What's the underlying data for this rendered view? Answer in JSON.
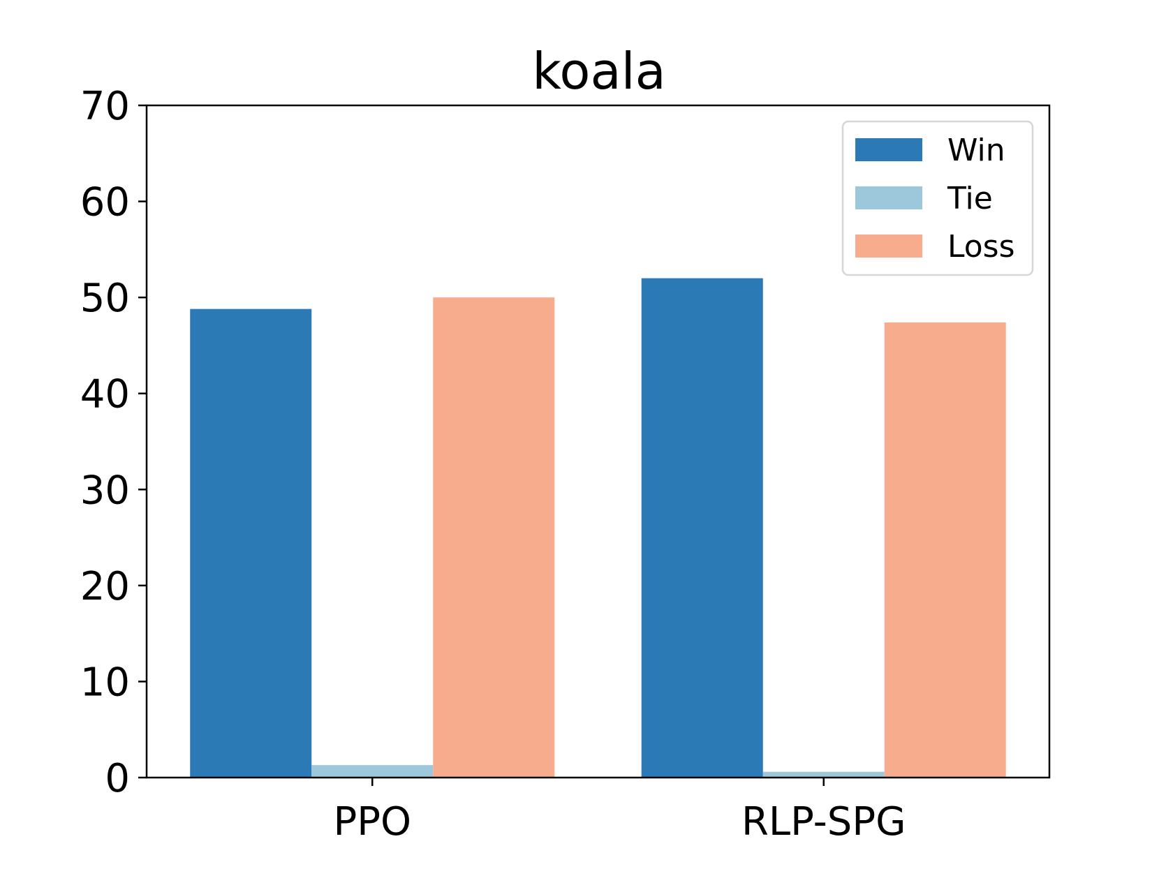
{
  "chart_data": {
    "type": "bar",
    "title": "koala",
    "xlabel": "",
    "ylabel": "",
    "categories": [
      "PPO",
      "RLP-SPG"
    ],
    "series": [
      {
        "name": "Win",
        "color": "#2b79b5",
        "values": [
          48.8,
          52.0
        ]
      },
      {
        "name": "Tie",
        "color": "#9dc8dc",
        "values": [
          1.3,
          0.6
        ]
      },
      {
        "name": "Loss",
        "color": "#f7ac8d",
        "values": [
          50.0,
          47.4
        ]
      }
    ],
    "ylim": [
      0,
      70
    ],
    "yticks": [
      0,
      10,
      20,
      30,
      40,
      50,
      60,
      70
    ],
    "grid": false,
    "legend_position": "top-right"
  }
}
